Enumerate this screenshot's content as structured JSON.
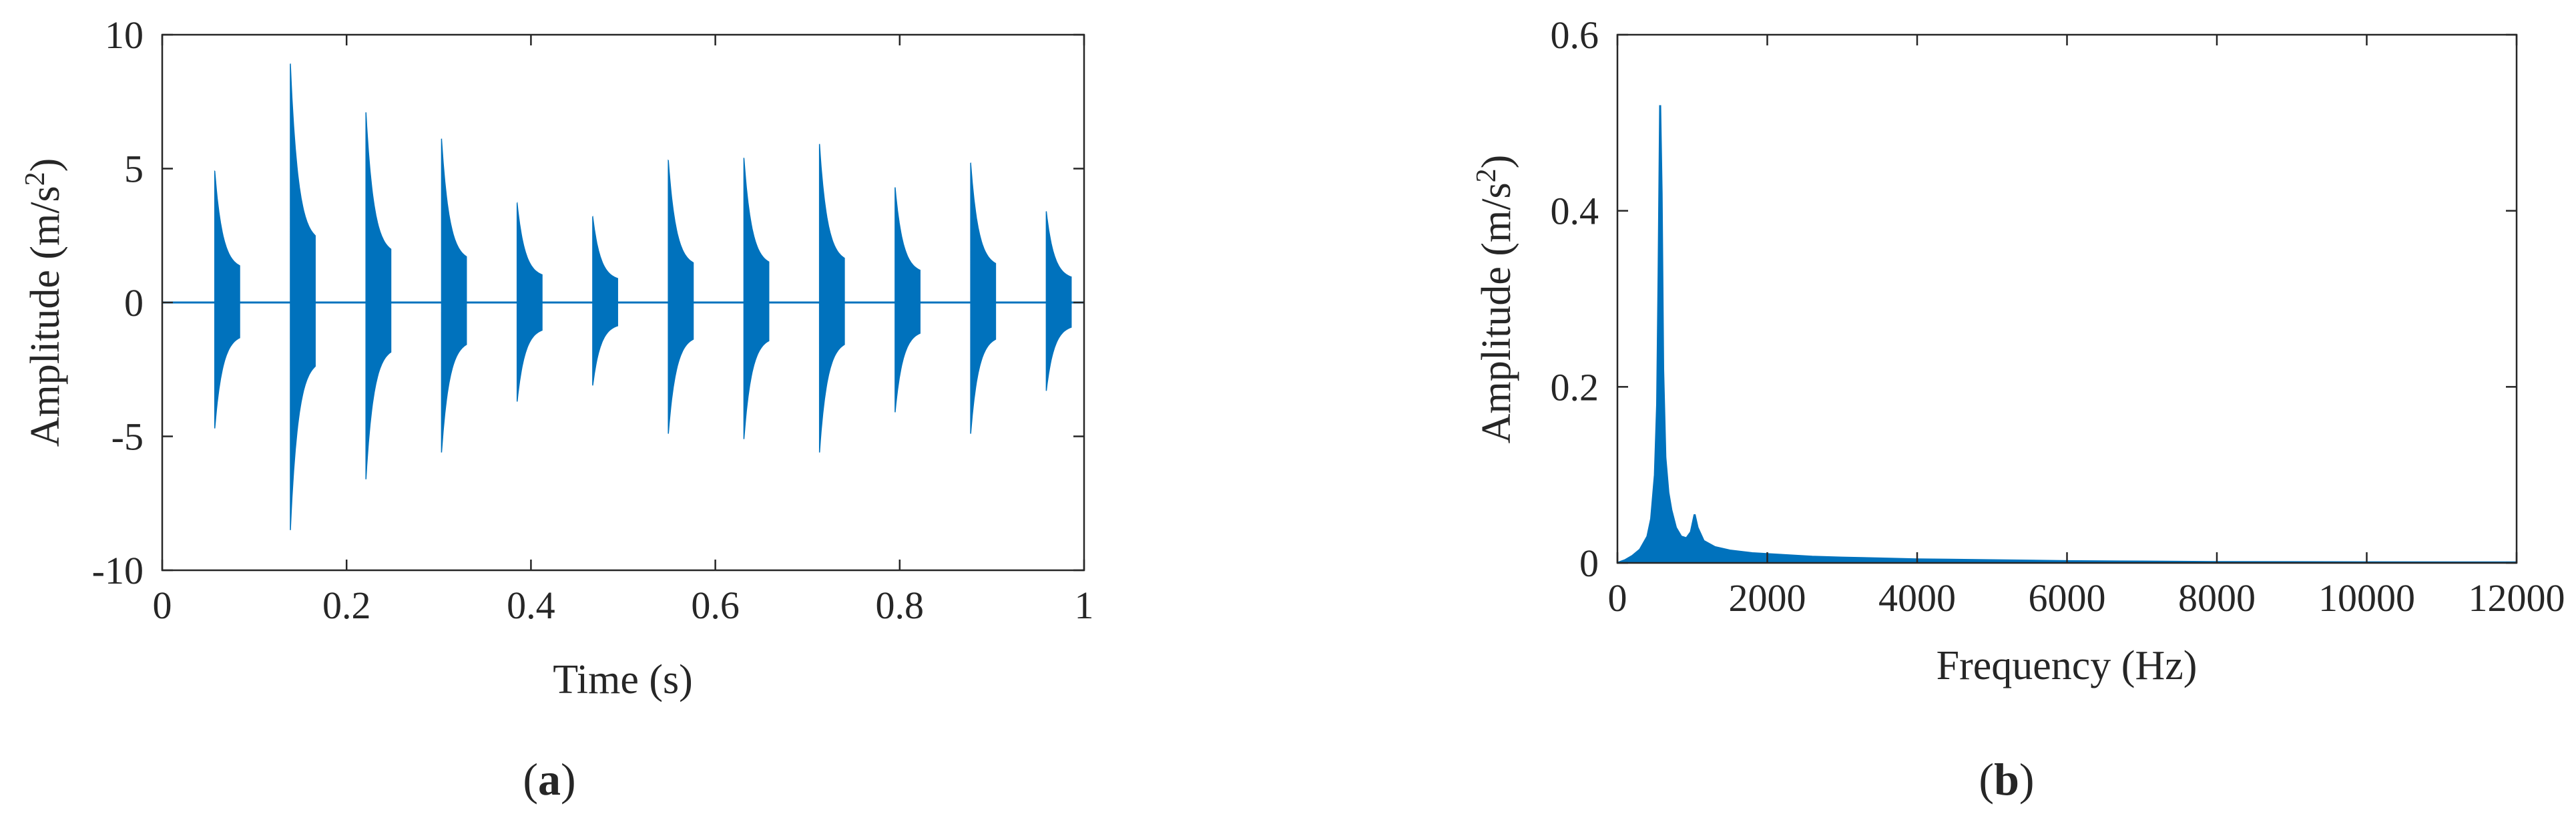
{
  "chart_data": [
    {
      "type": "line",
      "panel_label": "a",
      "xlabel": "Time (s)",
      "ylabel": "Amplitude (m/s",
      "ylabel_sup": "2",
      "ylabel_end": ")",
      "xlim": [
        0,
        1
      ],
      "ylim": [
        -10,
        10
      ],
      "xticks": [
        0,
        0.2,
        0.4,
        0.6,
        0.8,
        1
      ],
      "xtick_labels": [
        "0",
        "0.2",
        "0.4",
        "0.6",
        "0.8",
        "1"
      ],
      "yticks": [
        -10,
        -5,
        0,
        5,
        10
      ],
      "ytick_labels": [
        "-10",
        "-5",
        "0",
        "5",
        "10"
      ],
      "grid": false,
      "color": "#0072BD",
      "series": [
        {
          "bursts": [
            {
              "t": 0.057,
              "pos": 4.9,
              "neg": -4.7
            },
            {
              "t": 0.139,
              "pos": 8.9,
              "neg": -8.5
            },
            {
              "t": 0.221,
              "pos": 7.1,
              "neg": -6.6
            },
            {
              "t": 0.303,
              "pos": 6.1,
              "neg": -5.6
            },
            {
              "t": 0.385,
              "pos": 3.7,
              "neg": -3.7
            },
            {
              "t": 0.467,
              "pos": 3.2,
              "neg": -3.1
            },
            {
              "t": 0.549,
              "pos": 5.3,
              "neg": -4.9
            },
            {
              "t": 0.631,
              "pos": 5.4,
              "neg": -5.1
            },
            {
              "t": 0.713,
              "pos": 5.9,
              "neg": -5.6
            },
            {
              "t": 0.795,
              "pos": 4.3,
              "neg": -4.1
            },
            {
              "t": 0.877,
              "pos": 5.2,
              "neg": -4.9
            },
            {
              "t": 0.959,
              "pos": 3.4,
              "neg": -3.3
            }
          ],
          "burst_duration": 0.027,
          "decay_ratio": 0.25
        }
      ]
    },
    {
      "type": "line",
      "panel_label": "b",
      "xlabel": "Frequency (Hz)",
      "ylabel": "Amplitude (m/s",
      "ylabel_sup": "2",
      "ylabel_end": ")",
      "xlim": [
        0,
        12000
      ],
      "ylim": [
        0,
        0.6
      ],
      "xticks": [
        0,
        2000,
        4000,
        6000,
        8000,
        10000,
        12000
      ],
      "xtick_labels": [
        "0",
        "2000",
        "4000",
        "6000",
        "8000",
        "10000",
        "12000"
      ],
      "yticks": [
        0,
        0.2,
        0.4,
        0.6
      ],
      "ytick_labels": [
        "0",
        "0.2",
        "0.4",
        "0.6"
      ],
      "grid": false,
      "color": "#0072BD",
      "series": [
        {
          "points": [
            [
              0,
              0.0
            ],
            [
              100,
              0.003
            ],
            [
              200,
              0.008
            ],
            [
              300,
              0.015
            ],
            [
              400,
              0.03
            ],
            [
              450,
              0.05
            ],
            [
              500,
              0.1
            ],
            [
              530,
              0.18
            ],
            [
              550,
              0.33
            ],
            [
              570,
              0.52
            ],
            [
              590,
              0.42
            ],
            [
              610,
              0.22
            ],
            [
              640,
              0.12
            ],
            [
              680,
              0.08
            ],
            [
              720,
              0.06
            ],
            [
              780,
              0.04
            ],
            [
              850,
              0.03
            ],
            [
              920,
              0.028
            ],
            [
              980,
              0.035
            ],
            [
              1030,
              0.055
            ],
            [
              1070,
              0.04
            ],
            [
              1150,
              0.025
            ],
            [
              1300,
              0.018
            ],
            [
              1500,
              0.014
            ],
            [
              1800,
              0.011
            ],
            [
              2200,
              0.009
            ],
            [
              2600,
              0.007
            ],
            [
              3000,
              0.006
            ],
            [
              3500,
              0.005
            ],
            [
              4000,
              0.004
            ],
            [
              5000,
              0.003
            ],
            [
              6000,
              0.002
            ],
            [
              7000,
              0.0015
            ],
            [
              8000,
              0.001
            ],
            [
              10000,
              0.0007
            ],
            [
              12000,
              0.0005
            ]
          ]
        }
      ]
    }
  ]
}
